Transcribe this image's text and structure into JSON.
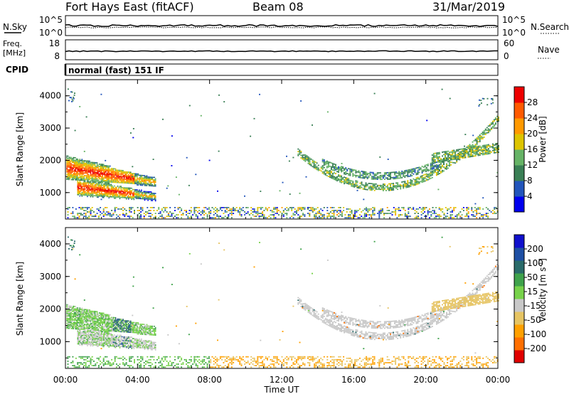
{
  "header": {
    "site": "Fort Hays East (fitACF)",
    "beam": "Beam 08",
    "date": "31/Mar/2019"
  },
  "strips": {
    "nsky": {
      "label": "N.Sky",
      "top_tick": "10^5",
      "bottom_tick": "10^0",
      "right_top_tick": "10^5",
      "right_bottom_tick": "10^0"
    },
    "nsearch": {
      "label": "N.Search"
    },
    "freq": {
      "label_line1": "Freq.",
      "label_line2": "[MHz]",
      "top_tick": "18",
      "bottom_tick": "8",
      "right_top_tick": "60",
      "right_bottom_tick": "0"
    },
    "nave": {
      "label": "Nave"
    },
    "cpid": {
      "label": "CPID",
      "value": "normal (fast) 151 IF"
    }
  },
  "time_axis": {
    "ticks": [
      "00:00",
      "04:00",
      "08:00",
      "12:00",
      "16:00",
      "20:00",
      "00:00"
    ],
    "label": "Time UT"
  },
  "colors": {
    "power": [
      "#0000ee",
      "#2255bb",
      "#3a7f55",
      "#66b366",
      "#ddc400",
      "#ff9900",
      "#ff5a00",
      "#ee0000"
    ],
    "velocity": [
      "#e00000",
      "#ff6f00",
      "#ffa000",
      "#e6c463",
      "#c8c8c8",
      "#77d24a",
      "#3fa24b",
      "#2a6b6a",
      "#1e4fa4",
      "#1010cc"
    ],
    "trace": "#000000"
  },
  "chart_data": [
    {
      "type": "heatmap",
      "panel": "power",
      "xlabel": "",
      "ylabel": "Slant Range [km]",
      "yticks": [
        "1000",
        "2000",
        "3000",
        "4000"
      ],
      "colorbar_label": "Power [dB]",
      "colorbar_ticks": [
        "4",
        "8",
        "12",
        "16",
        "20",
        "24",
        "28"
      ],
      "x_range_hours": [
        0,
        24
      ],
      "y_range_km": [
        180,
        4500
      ],
      "features": [
        {
          "t0": 0.0,
          "t1": 2.5,
          "r0": 1300,
          "r1": 2100,
          "value_db": 22
        },
        {
          "t0": 2.0,
          "t1": 5.0,
          "r0": 700,
          "r1": 1500,
          "value_db": 24
        },
        {
          "t0": 12.8,
          "t1": 21.0,
          "r0": 900,
          "r1": 2600,
          "value_db": 10
        },
        {
          "t0": 20.5,
          "t1": 24.0,
          "r0": 1800,
          "r1": 2500,
          "value_db": 12
        }
      ]
    },
    {
      "type": "heatmap",
      "panel": "velocity",
      "xlabel": "Time UT",
      "ylabel": "Slant Range [km]",
      "yticks": [
        "1000",
        "2000",
        "3000",
        "4000"
      ],
      "colorbar_label": "Velocity [m s^-1]",
      "colorbar_ticks": [
        "-200",
        "-100",
        "-50",
        "-15",
        "15",
        "50",
        "100",
        "200"
      ],
      "x_range_hours": [
        0,
        24
      ],
      "y_range_km": [
        180,
        4500
      ],
      "features": [
        {
          "t0": 0.0,
          "t1": 5.0,
          "r0": 700,
          "r1": 2200,
          "value_ms": 60
        },
        {
          "t0": 12.8,
          "t1": 21.0,
          "r0": 900,
          "r1": 2600,
          "value_ms": 0
        },
        {
          "t0": 20.5,
          "t1": 24.0,
          "r0": 1800,
          "r1": 2500,
          "value_ms": -20
        }
      ]
    }
  ]
}
